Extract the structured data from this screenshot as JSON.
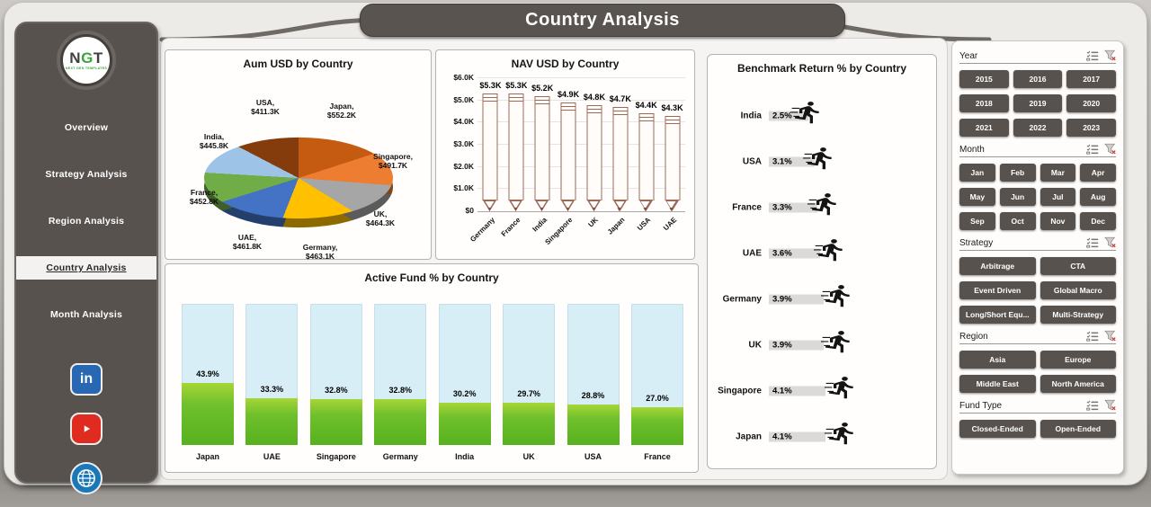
{
  "header": {
    "title": "Country Analysis"
  },
  "sidebar": {
    "logo": {
      "letters": [
        {
          "ch": "N",
          "color": "#44403d"
        },
        {
          "ch": "G",
          "color": "#3aa53a"
        },
        {
          "ch": "T",
          "color": "#44403d"
        }
      ],
      "subtext": "NEXT GEN TEMPLATES"
    },
    "nav": [
      {
        "label": "Overview",
        "active": false
      },
      {
        "label": "Strategy Analysis",
        "active": false
      },
      {
        "label": "Region Analysis",
        "active": false
      },
      {
        "label": "Country Analysis",
        "active": true
      },
      {
        "label": "Month Analysis",
        "active": false
      }
    ],
    "social": [
      {
        "name": "linkedin"
      },
      {
        "name": "youtube"
      },
      {
        "name": "website"
      }
    ]
  },
  "chart_data": [
    {
      "type": "pie",
      "title": "Aum USD by Country",
      "slices": [
        {
          "label": "Japan",
          "value": 552.2,
          "value_label": "$552.2K",
          "color": "#C55A11"
        },
        {
          "label": "Singapore",
          "value": 491.7,
          "value_label": "$491.7K",
          "color": "#ED7D31"
        },
        {
          "label": "UK",
          "value": 464.3,
          "value_label": "$464.3K",
          "color": "#A6A6A6"
        },
        {
          "label": "Germany",
          "value": 463.1,
          "value_label": "$463.1K",
          "color": "#FFC000"
        },
        {
          "label": "UAE",
          "value": 461.8,
          "value_label": "$461.8K",
          "color": "#4472C4"
        },
        {
          "label": "France",
          "value": 452.8,
          "value_label": "$452.8K",
          "color": "#70AD47"
        },
        {
          "label": "India",
          "value": 445.8,
          "value_label": "$445.8K",
          "color": "#9DC3E6"
        },
        {
          "label": "USA",
          "value": 411.3,
          "value_label": "$411.3K",
          "color": "#843C0C"
        }
      ]
    },
    {
      "type": "bar",
      "title": "NAV USD by Country",
      "categories": [
        "Germany",
        "France",
        "India",
        "Singapore",
        "UK",
        "Japan",
        "USA",
        "UAE"
      ],
      "values": [
        5.3,
        5.3,
        5.2,
        4.9,
        4.8,
        4.7,
        4.4,
        4.3
      ],
      "value_labels": [
        "$5.3K",
        "$5.3K",
        "$5.2K",
        "$4.9K",
        "$4.8K",
        "$4.7K",
        "$4.4K",
        "$4.3K"
      ],
      "ylim": [
        0,
        6
      ],
      "ytick_labels": [
        "$0",
        "$1.0K",
        "$2.0K",
        "$3.0K",
        "$4.0K",
        "$5.0K",
        "$6.0K"
      ]
    },
    {
      "type": "bar",
      "title": "Active Fund % by Country",
      "categories": [
        "Japan",
        "UAE",
        "Singapore",
        "Germany",
        "India",
        "UK",
        "USA",
        "France"
      ],
      "values": [
        43.9,
        33.3,
        32.8,
        32.8,
        30.2,
        29.7,
        28.8,
        27.0
      ],
      "value_labels": [
        "43.9%",
        "33.3%",
        "32.8%",
        "32.8%",
        "30.2%",
        "29.7%",
        "28.8%",
        "27.0%"
      ],
      "ylim": [
        0,
        100
      ]
    },
    {
      "type": "scatter",
      "title": "Benchmark Return % by Country",
      "categories": [
        "India",
        "USA",
        "France",
        "UAE",
        "Germany",
        "UK",
        "Singapore",
        "Japan"
      ],
      "values": [
        2.5,
        3.1,
        3.3,
        3.6,
        3.9,
        3.9,
        4.1,
        4.1
      ],
      "value_labels": [
        "2.5%",
        "3.1%",
        "3.3%",
        "3.6%",
        "3.9%",
        "3.9%",
        "4.1%",
        "4.1%"
      ]
    }
  ],
  "slicers": [
    {
      "title": "Year",
      "cols": 3,
      "options": [
        "2015",
        "2016",
        "2017",
        "2018",
        "2019",
        "2020",
        "2021",
        "2022",
        "2023"
      ]
    },
    {
      "title": "Month",
      "cols": 4,
      "options": [
        "Jan",
        "Feb",
        "Mar",
        "Apr",
        "May",
        "Jun",
        "Jul",
        "Aug",
        "Sep",
        "Oct",
        "Nov",
        "Dec"
      ]
    },
    {
      "title": "Strategy",
      "cols": 2,
      "options": [
        "Arbitrage",
        "CTA",
        "Event Driven",
        "Global Macro",
        "Long/Short Equ...",
        "Multi-Strategy"
      ]
    },
    {
      "title": "Region",
      "cols": 2,
      "options": [
        "Asia",
        "Europe",
        "Middle East",
        "North America"
      ]
    },
    {
      "title": "Fund Type",
      "cols": 2,
      "options": [
        "Closed-Ended",
        "Open-Ended"
      ]
    }
  ],
  "colors": {
    "sidebar": "#57524e",
    "banner": "#5a5450",
    "slicer_button": "#57524e",
    "active_bar_fill": "#6fc02c",
    "active_bar_track": "#d8eef6",
    "pencil_outline": "#9d6a58"
  }
}
